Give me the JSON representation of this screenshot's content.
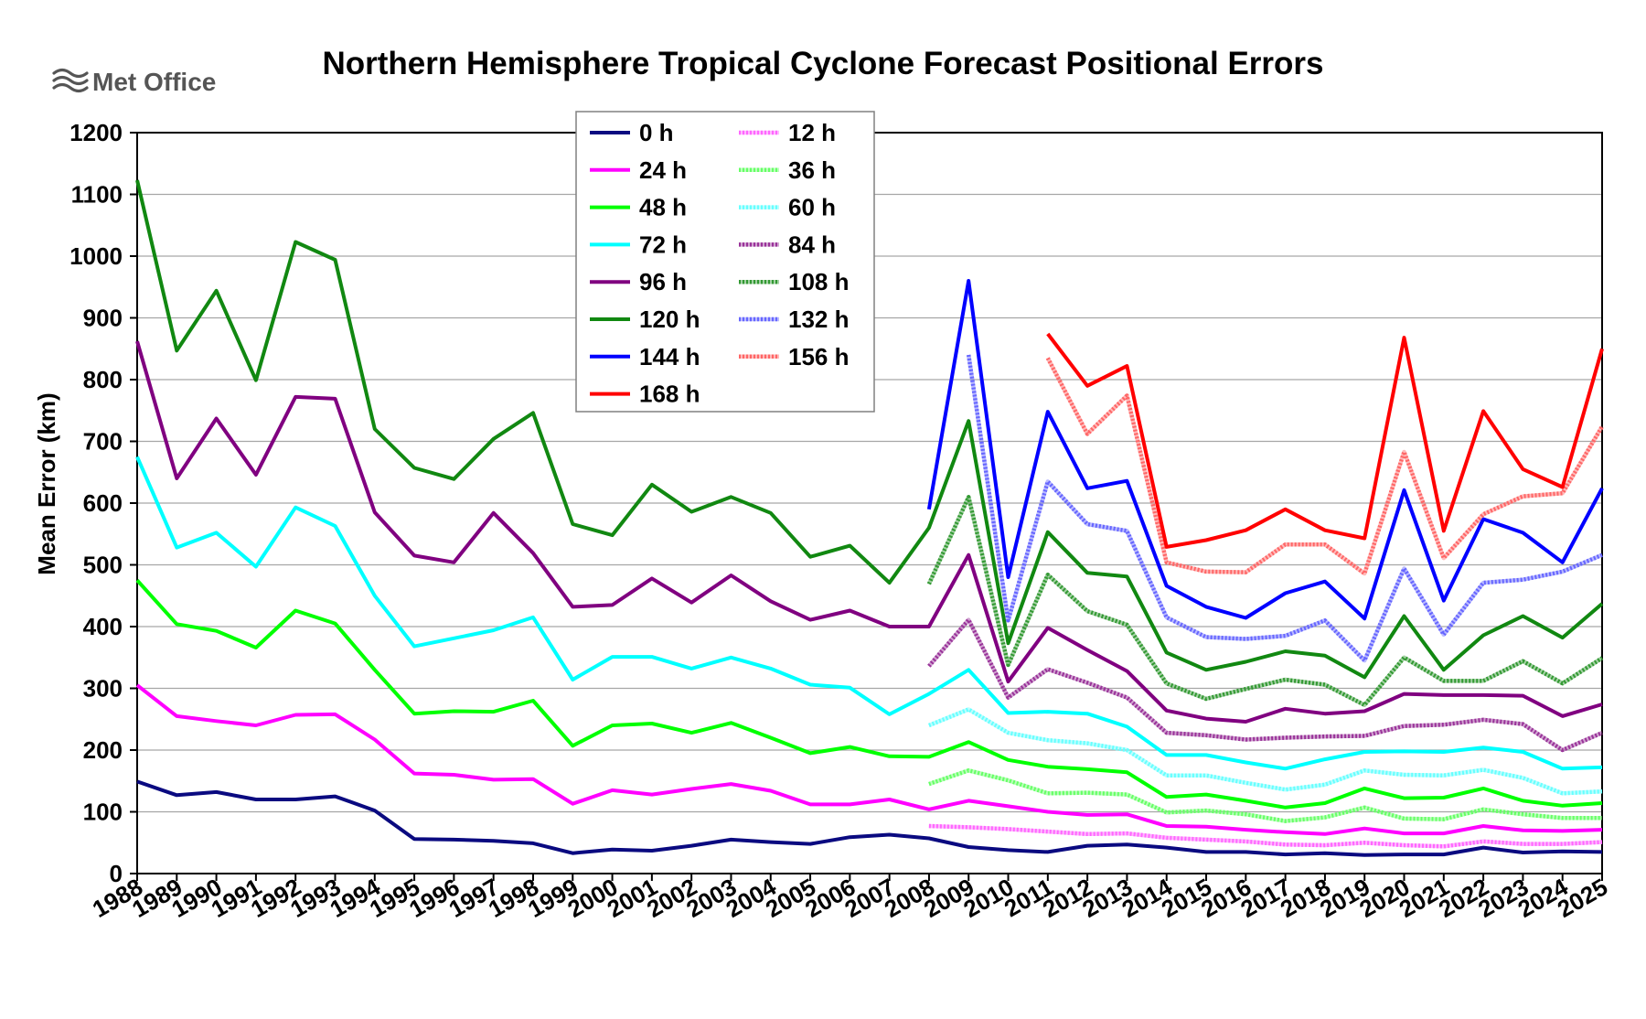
{
  "logo": {
    "text": "Met Office"
  },
  "chart_data": {
    "type": "line",
    "title": "Northern Hemisphere Tropical Cyclone Forecast Positional Errors",
    "xlabel": "",
    "ylabel": "Mean Error (km)",
    "ylim": [
      0,
      1200
    ],
    "yticks": [
      0,
      100,
      200,
      300,
      400,
      500,
      600,
      700,
      800,
      900,
      1000,
      1100,
      1200
    ],
    "grid": true,
    "legend_position": "top-center",
    "categories": [
      "1988",
      "1989",
      "1990",
      "1991",
      "1992",
      "1993",
      "1994",
      "1995",
      "1996",
      "1997",
      "1998",
      "1999",
      "2000",
      "2001",
      "2002",
      "2003",
      "2004",
      "2005",
      "2006",
      "2007",
      "2008",
      "2009",
      "2010",
      "2011",
      "2012",
      "2013",
      "2014",
      "2015",
      "2016",
      "2017",
      "2018",
      "2019",
      "2020",
      "2021",
      "2022",
      "2023",
      "2024",
      "2025"
    ],
    "series": [
      {
        "name": "0 h",
        "color": "#0a0a80",
        "style": "solid",
        "values": [
          149,
          127,
          132,
          120,
          120,
          125,
          102,
          56,
          55,
          53,
          49,
          33,
          39,
          37,
          45,
          55,
          51,
          48,
          59,
          63,
          57,
          43,
          38,
          35,
          45,
          47,
          42,
          35,
          35,
          31,
          33,
          30,
          31,
          31,
          42,
          34,
          36,
          35
        ]
      },
      {
        "name": "12 h",
        "color": "#ff66ff",
        "style": "hatched",
        "values": [
          null,
          null,
          null,
          null,
          null,
          null,
          null,
          null,
          null,
          null,
          null,
          null,
          null,
          null,
          null,
          null,
          null,
          null,
          null,
          null,
          77,
          75,
          72,
          68,
          64,
          65,
          58,
          55,
          52,
          47,
          46,
          50,
          46,
          44,
          52,
          48,
          48,
          51
        ]
      },
      {
        "name": "24 h",
        "color": "#ff00ff",
        "style": "solid",
        "values": [
          305,
          255,
          247,
          240,
          257,
          258,
          217,
          162,
          160,
          152,
          153,
          113,
          135,
          128,
          137,
          145,
          134,
          112,
          112,
          120,
          104,
          118,
          109,
          100,
          95,
          96,
          77,
          76,
          71,
          67,
          64,
          73,
          65,
          65,
          77,
          70,
          69,
          71
        ]
      },
      {
        "name": "36 h",
        "color": "#66ff66",
        "style": "hatched",
        "values": [
          null,
          null,
          null,
          null,
          null,
          null,
          null,
          null,
          null,
          null,
          null,
          null,
          null,
          null,
          null,
          null,
          null,
          null,
          null,
          null,
          145,
          167,
          151,
          130,
          131,
          128,
          99,
          102,
          96,
          85,
          91,
          107,
          89,
          88,
          104,
          96,
          90,
          90
        ]
      },
      {
        "name": "48 h",
        "color": "#00ff00",
        "style": "solid",
        "values": [
          475,
          404,
          393,
          366,
          426,
          405,
          330,
          259,
          263,
          262,
          280,
          207,
          240,
          243,
          228,
          244,
          220,
          195,
          205,
          190,
          189,
          213,
          184,
          173,
          169,
          164,
          124,
          128,
          118,
          107,
          114,
          138,
          122,
          123,
          138,
          118,
          110,
          114
        ]
      },
      {
        "name": "60 h",
        "color": "#66ffff",
        "style": "hatched",
        "values": [
          null,
          null,
          null,
          null,
          null,
          null,
          null,
          null,
          null,
          null,
          null,
          null,
          null,
          null,
          null,
          null,
          null,
          null,
          null,
          null,
          240,
          266,
          228,
          216,
          211,
          200,
          159,
          159,
          147,
          136,
          144,
          167,
          160,
          159,
          168,
          155,
          130,
          133
        ]
      },
      {
        "name": "72 h",
        "color": "#00ffff",
        "style": "solid",
        "values": [
          675,
          528,
          552,
          497,
          593,
          563,
          450,
          368,
          381,
          394,
          415,
          314,
          351,
          351,
          332,
          350,
          332,
          306,
          301,
          258,
          291,
          330,
          260,
          262,
          259,
          238,
          192,
          192,
          180,
          170,
          185,
          197,
          198,
          197,
          204,
          197,
          170,
          172
        ]
      },
      {
        "name": "84 h",
        "color": "#993399",
        "style": "hatched",
        "values": [
          null,
          null,
          null,
          null,
          null,
          null,
          null,
          null,
          null,
          null,
          null,
          null,
          null,
          null,
          null,
          null,
          null,
          null,
          null,
          null,
          336,
          411,
          285,
          331,
          309,
          285,
          228,
          224,
          217,
          220,
          222,
          223,
          239,
          241,
          249,
          242,
          200,
          228
        ]
      },
      {
        "name": "96 h",
        "color": "#800080",
        "style": "solid",
        "values": [
          862,
          640,
          737,
          646,
          772,
          769,
          585,
          515,
          504,
          584,
          519,
          432,
          435,
          478,
          439,
          483,
          441,
          411,
          426,
          400,
          400,
          516,
          311,
          398,
          362,
          328,
          264,
          251,
          246,
          267,
          259,
          263,
          291,
          289,
          289,
          288,
          255,
          274
        ]
      },
      {
        "name": "108 h",
        "color": "#339933",
        "style": "hatched",
        "values": [
          null,
          null,
          null,
          null,
          null,
          null,
          null,
          null,
          null,
          null,
          null,
          null,
          null,
          null,
          null,
          null,
          null,
          null,
          null,
          null,
          469,
          610,
          338,
          484,
          425,
          403,
          308,
          283,
          299,
          314,
          306,
          273,
          350,
          312,
          312,
          344,
          308,
          349
        ]
      },
      {
        "name": "120 h",
        "color": "#118811",
        "style": "solid",
        "values": [
          1123,
          847,
          944,
          799,
          1023,
          994,
          720,
          657,
          639,
          704,
          746,
          566,
          548,
          630,
          586,
          610,
          584,
          513,
          531,
          471,
          560,
          733,
          373,
          553,
          487,
          481,
          358,
          330,
          343,
          360,
          353,
          318,
          417,
          330,
          386,
          417,
          382,
          437
        ]
      },
      {
        "name": "132 h",
        "color": "#6666ff",
        "style": "hatched",
        "values": [
          null,
          null,
          null,
          null,
          null,
          null,
          null,
          null,
          null,
          null,
          null,
          null,
          null,
          null,
          null,
          null,
          null,
          null,
          null,
          null,
          null,
          840,
          410,
          635,
          566,
          555,
          415,
          383,
          380,
          385,
          410,
          345,
          494,
          387,
          471,
          476,
          489,
          516
        ]
      },
      {
        "name": "144 h",
        "color": "#0000ff",
        "style": "solid",
        "values": [
          null,
          null,
          null,
          null,
          null,
          null,
          null,
          null,
          null,
          null,
          null,
          null,
          null,
          null,
          null,
          null,
          null,
          null,
          null,
          null,
          590,
          960,
          480,
          748,
          624,
          636,
          466,
          432,
          414,
          454,
          473,
          413,
          621,
          442,
          574,
          552,
          504,
          624
        ]
      },
      {
        "name": "156 h",
        "color": "#ff6666",
        "style": "hatched",
        "values": [
          null,
          null,
          null,
          null,
          null,
          null,
          null,
          null,
          null,
          null,
          null,
          null,
          null,
          null,
          null,
          null,
          null,
          null,
          null,
          null,
          null,
          null,
          null,
          835,
          712,
          774,
          504,
          489,
          488,
          533,
          533,
          486,
          683,
          511,
          582,
          611,
          616,
          724
        ]
      },
      {
        "name": "168 h",
        "color": "#ff0000",
        "style": "solid",
        "values": [
          null,
          null,
          null,
          null,
          null,
          null,
          null,
          null,
          null,
          null,
          null,
          null,
          null,
          null,
          null,
          null,
          null,
          null,
          null,
          null,
          null,
          null,
          null,
          874,
          790,
          822,
          529,
          540,
          556,
          590,
          556,
          543,
          868,
          555,
          749,
          655,
          626,
          850
        ]
      }
    ]
  }
}
